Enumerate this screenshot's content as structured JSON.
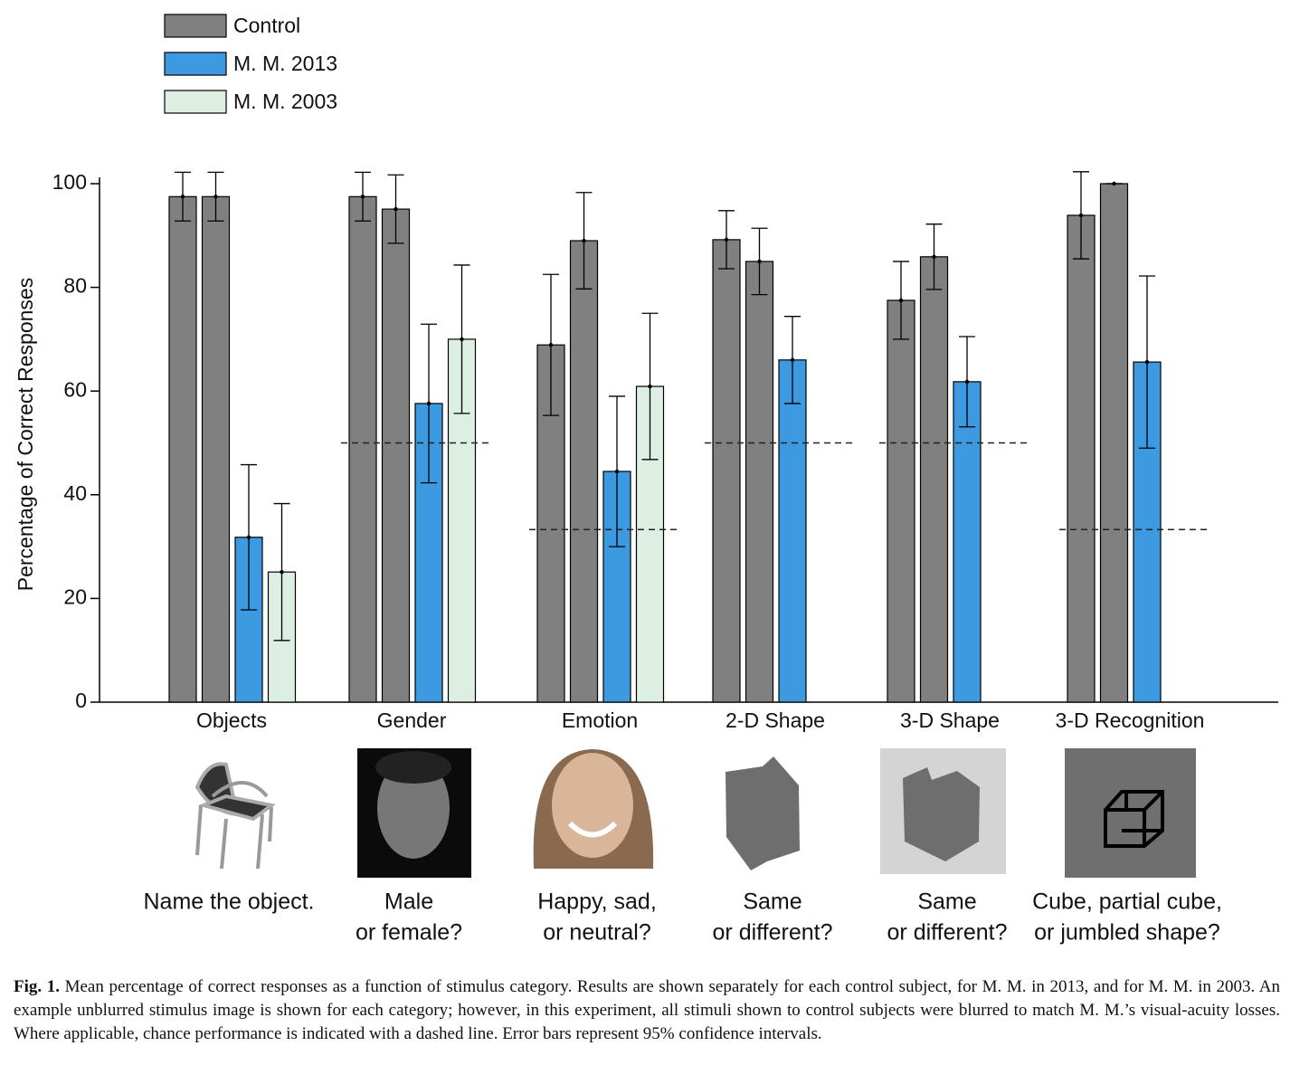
{
  "chart_data": {
    "type": "bar",
    "ylabel": "Percentage of Correct Responses",
    "categories": [
      "Objects",
      "Gender",
      "Emotion",
      "2-D Shape",
      "3-D Shape",
      "3-D Recognition"
    ],
    "task_labels": [
      [
        "Name the object."
      ],
      [
        "Male",
        "or female?"
      ],
      [
        "Happy, sad,",
        "or neutral?"
      ],
      [
        "Same",
        "or different?"
      ],
      [
        "Same",
        "or different?"
      ],
      [
        "Cube, partial cube,",
        "or jumbled shape?"
      ]
    ],
    "series": [
      {
        "name": "Control",
        "color": "#808080",
        "values": [
          [
            97.5,
            97.5
          ],
          [
            97.5,
            95.1
          ],
          [
            68.9,
            89
          ],
          [
            89.2,
            85
          ],
          [
            77.5,
            85.9
          ],
          [
            93.9,
            100
          ]
        ],
        "errors": [
          [
            4.7,
            4.7
          ],
          [
            4.7,
            6.6
          ],
          [
            13.6,
            9.3
          ],
          [
            5.6,
            6.4
          ],
          [
            7.5,
            6.3
          ],
          [
            8.4,
            0
          ]
        ]
      },
      {
        "name": "M. M. 2013",
        "color": "#3d9ae0",
        "values": [
          31.8,
          57.6,
          44.5,
          66,
          61.8,
          65.6
        ],
        "errors": [
          14,
          15.3,
          14.5,
          8.4,
          8.7,
          16.6
        ]
      },
      {
        "name": "M. M. 2003",
        "color": "#ddefe3",
        "values": [
          25.1,
          70,
          60.9,
          null,
          null,
          null
        ],
        "errors": [
          13.2,
          14.3,
          14.1,
          null,
          null,
          null
        ]
      }
    ],
    "chance": [
      null,
      50,
      33.3,
      50,
      50,
      33.3
    ],
    "ylim": [
      0,
      100
    ],
    "yticks": [
      0,
      20,
      40,
      60,
      80,
      100
    ]
  },
  "caption": {
    "label": "Fig. 1.",
    "text": "Mean percentage of correct responses as a function of stimulus category. Results are shown separately for each control subject, for M. M. in 2013, and for M. M. in 2003. An example unblurred stimulus image is shown for each category; however, in this experiment, all stimuli shown to control subjects were blurred to match M. M.’s visual-acuity losses. Where applicable, chance performance is indicated with a dashed line. Error bars represent 95% confidence intervals."
  }
}
